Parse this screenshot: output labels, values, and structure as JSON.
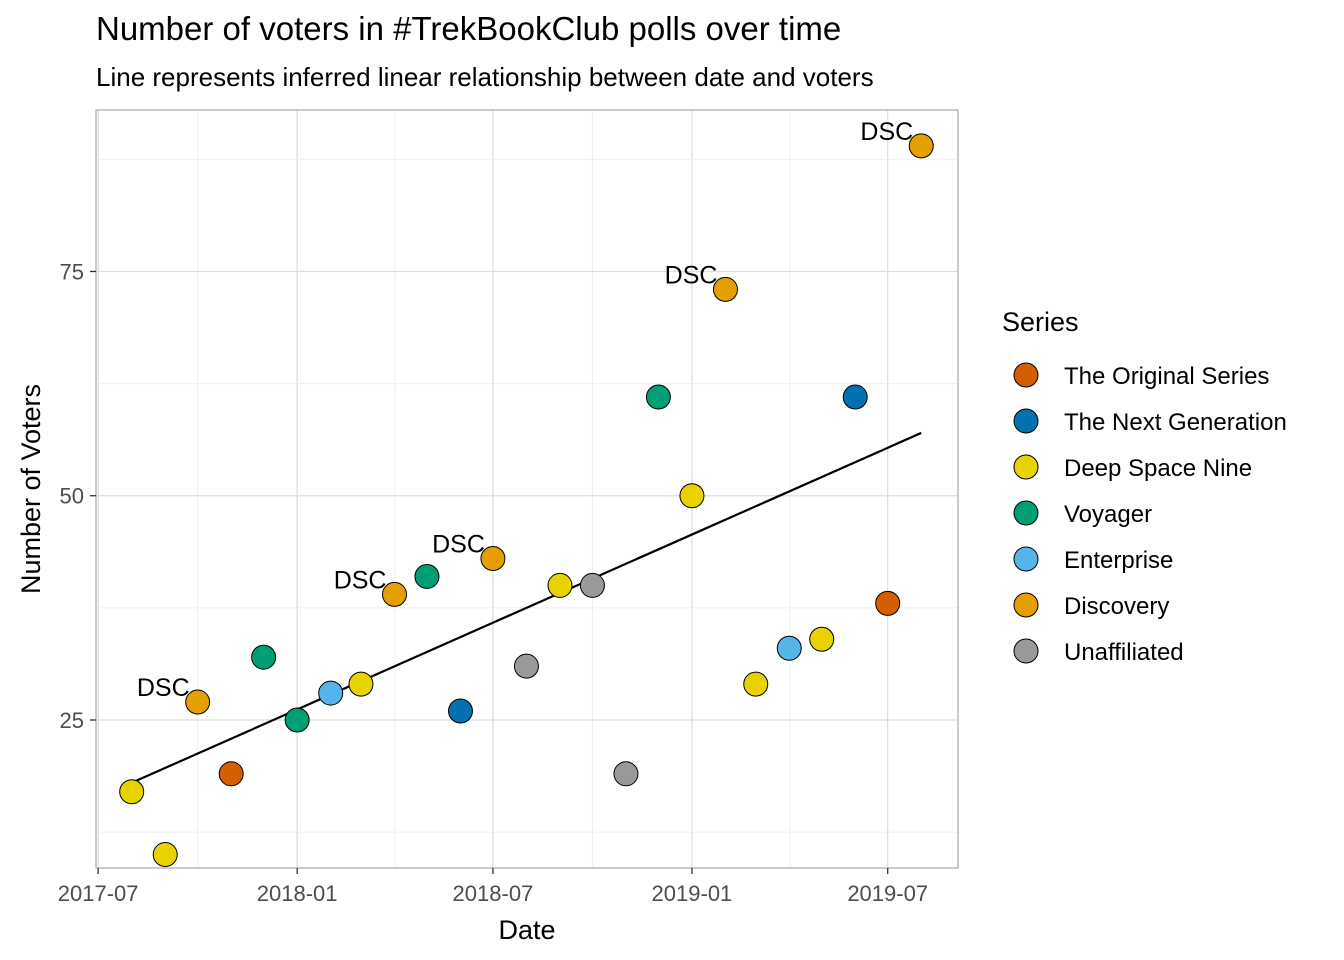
{
  "chart_data": {
    "type": "scatter",
    "title": "Number of voters in #TrekBookClub polls over time",
    "subtitle": "Line represents inferred linear relationship between date and voters",
    "xlabel": "Date",
    "ylabel": "Number of Voters",
    "x_ticks": [
      "2017-07",
      "2018-01",
      "2018-07",
      "2019-01",
      "2019-07"
    ],
    "y_ticks": [
      25,
      50,
      75
    ],
    "ylim": [
      8.5,
      93
    ],
    "xlim": [
      "2017-06-29",
      "2019-09-04"
    ],
    "grid": true,
    "legend": {
      "title": "Series",
      "placement": "right",
      "entries": [
        {
          "name": "The Original Series",
          "color": "#D55E00"
        },
        {
          "name": "The Next Generation",
          "color": "#0072B2"
        },
        {
          "name": "Deep Space Nine",
          "color": "#E8D300"
        },
        {
          "name": "Voyager",
          "color": "#009E73"
        },
        {
          "name": "Enterprise",
          "color": "#56B4E9"
        },
        {
          "name": "Discovery",
          "color": "#E69F00"
        },
        {
          "name": "Unaffiliated",
          "color": "#999999"
        }
      ]
    },
    "points": [
      {
        "x": "2017-08-01",
        "y": 17,
        "series": "Deep Space Nine"
      },
      {
        "x": "2017-09-01",
        "y": 10,
        "series": "Deep Space Nine"
      },
      {
        "x": "2017-10-01",
        "y": 27,
        "series": "Discovery",
        "label": "DSC"
      },
      {
        "x": "2017-11-01",
        "y": 19,
        "series": "The Original Series"
      },
      {
        "x": "2017-12-01",
        "y": 32,
        "series": "Voyager"
      },
      {
        "x": "2018-01-01",
        "y": 25,
        "series": "Voyager"
      },
      {
        "x": "2018-02-01",
        "y": 28,
        "series": "Enterprise"
      },
      {
        "x": "2018-03-01",
        "y": 29,
        "series": "Deep Space Nine"
      },
      {
        "x": "2018-04-01",
        "y": 39,
        "series": "Discovery",
        "label": "DSC"
      },
      {
        "x": "2018-05-01",
        "y": 41,
        "series": "Voyager"
      },
      {
        "x": "2018-06-01",
        "y": 26,
        "series": "The Next Generation"
      },
      {
        "x": "2018-07-01",
        "y": 43,
        "series": "Discovery",
        "label": "DSC"
      },
      {
        "x": "2018-08-01",
        "y": 31,
        "series": "Unaffiliated"
      },
      {
        "x": "2018-09-01",
        "y": 40,
        "series": "Deep Space Nine"
      },
      {
        "x": "2018-10-01",
        "y": 40,
        "series": "Unaffiliated"
      },
      {
        "x": "2018-11-01",
        "y": 19,
        "series": "Unaffiliated"
      },
      {
        "x": "2018-12-01",
        "y": 61,
        "series": "Voyager"
      },
      {
        "x": "2019-01-01",
        "y": 50,
        "series": "Deep Space Nine"
      },
      {
        "x": "2019-02-01",
        "y": 73,
        "series": "Discovery",
        "label": "DSC"
      },
      {
        "x": "2019-03-01",
        "y": 29,
        "series": "Deep Space Nine"
      },
      {
        "x": "2019-04-01",
        "y": 33,
        "series": "Enterprise"
      },
      {
        "x": "2019-05-01",
        "y": 34,
        "series": "Deep Space Nine"
      },
      {
        "x": "2019-06-01",
        "y": 61,
        "series": "The Next Generation"
      },
      {
        "x": "2019-07-01",
        "y": 38,
        "series": "The Original Series"
      },
      {
        "x": "2019-08-01",
        "y": 89,
        "series": "Discovery",
        "label": "DSC"
      }
    ],
    "trend_line": {
      "x": [
        "2017-08-01",
        "2019-08-01"
      ],
      "y": [
        18,
        57
      ]
    }
  }
}
